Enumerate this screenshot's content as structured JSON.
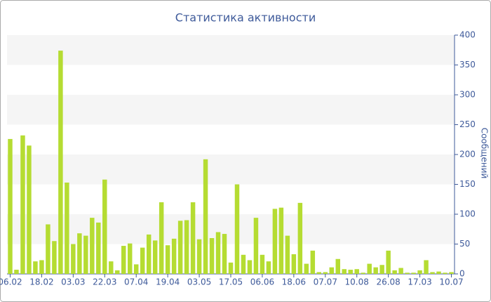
{
  "chart_data": {
    "type": "bar",
    "title": "Статистика активности",
    "y_label": "Сообщений",
    "categories": [
      "06.02",
      null,
      null,
      null,
      null,
      "18.02",
      null,
      null,
      null,
      null,
      "03.03",
      null,
      null,
      null,
      null,
      "22.03",
      null,
      null,
      null,
      null,
      "07.04",
      null,
      null,
      null,
      null,
      "19.04",
      null,
      null,
      null,
      null,
      "03.05",
      null,
      null,
      null,
      null,
      "17.05",
      null,
      null,
      null,
      null,
      "06.06",
      null,
      null,
      null,
      null,
      "18.06",
      null,
      null,
      null,
      null,
      "07.07",
      null,
      null,
      null,
      null,
      "10.08",
      null,
      null,
      null,
      null,
      "26.08",
      null,
      null,
      null,
      null,
      "17.03",
      null,
      null,
      null,
      null,
      "10.07"
    ],
    "values": [
      226,
      7,
      232,
      215,
      21,
      23,
      83,
      55,
      374,
      153,
      50,
      68,
      64,
      94,
      86,
      158,
      21,
      6,
      47,
      51,
      16,
      44,
      66,
      56,
      120,
      48,
      59,
      89,
      90,
      120,
      58,
      192,
      60,
      70,
      67,
      19,
      150,
      32,
      23,
      94,
      32,
      21,
      109,
      111,
      64,
      33,
      119,
      17,
      39,
      3,
      3,
      11,
      25,
      8,
      7,
      8,
      2,
      17,
      11,
      15,
      39,
      6,
      10,
      2,
      2,
      6,
      23,
      3,
      4,
      2,
      3
    ],
    "color": "#b5dc32",
    "ylim": [
      0,
      400
    ],
    "yticks": [
      0,
      50,
      100,
      150,
      200,
      250,
      300,
      350,
      400
    ],
    "grid": true
  }
}
